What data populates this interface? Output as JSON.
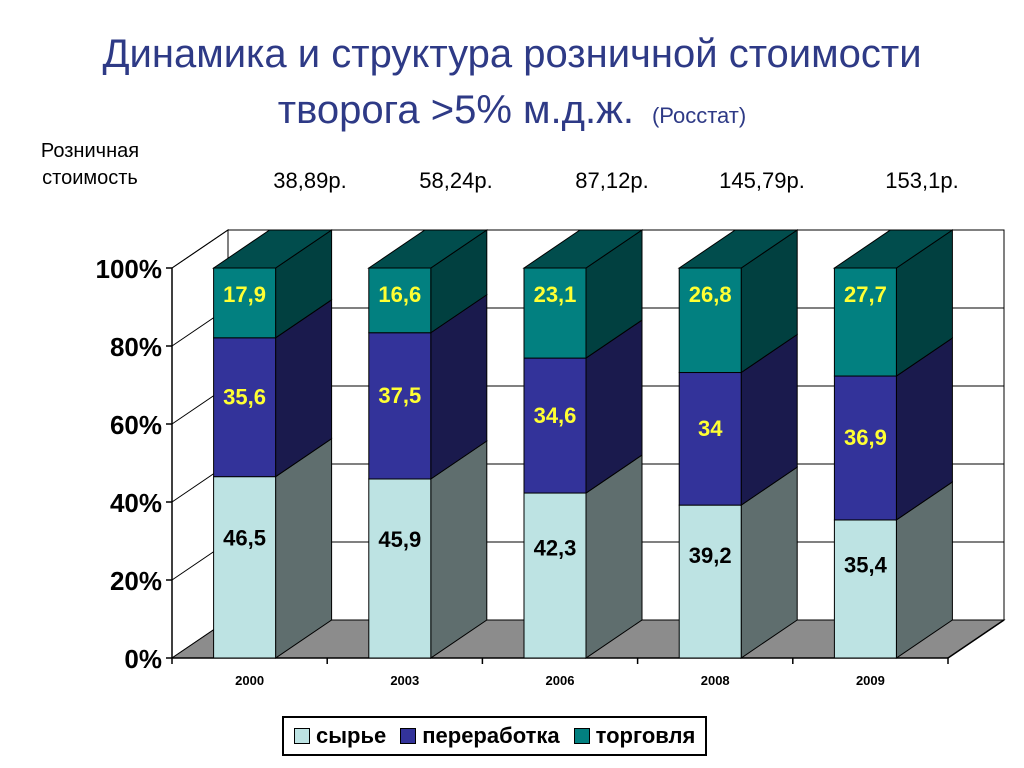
{
  "title_line1": "Динамика и структура розничной стоимости",
  "title_line2": "творога >5% м.д.ж.",
  "title_source": "(Росстат)",
  "price_label_line1": "Розничная",
  "price_label_line2": "стоимость",
  "prices": [
    "38,89р.",
    "58,24р.",
    "87,12р.",
    "145,79р.",
    "153,1р."
  ],
  "colors": {
    "raw": "#bde3e3",
    "processing": "#33339a",
    "trade": "#028080",
    "label_light": "#ffff33",
    "label_dark": "#000000"
  },
  "chart_data": {
    "type": "bar",
    "stacked": "percent",
    "three_d": true,
    "categories": [
      "2000",
      "2003",
      "2006",
      "2008",
      "2009"
    ],
    "series": [
      {
        "name": "сырье",
        "values": [
          46.5,
          45.9,
          42.3,
          39.2,
          35.4
        ]
      },
      {
        "name": "переработка",
        "values": [
          35.6,
          37.5,
          34.6,
          34,
          36.9
        ]
      },
      {
        "name": "торговля",
        "values": [
          17.9,
          16.6,
          23.1,
          26.8,
          27.7
        ]
      }
    ],
    "data_labels": [
      [
        "46,5",
        "45,9",
        "42,3",
        "39,2",
        "35,4"
      ],
      [
        "35,6",
        "37,5",
        "34,6",
        "34",
        "36,9"
      ],
      [
        "17,9",
        "16,6",
        "23,1",
        "26,8",
        "27,7"
      ]
    ],
    "y_ticks": [
      "0%",
      "20%",
      "40%",
      "60%",
      "80%",
      "100%"
    ],
    "ylim": [
      0,
      100
    ],
    "grid": true,
    "legend": "bottom"
  }
}
